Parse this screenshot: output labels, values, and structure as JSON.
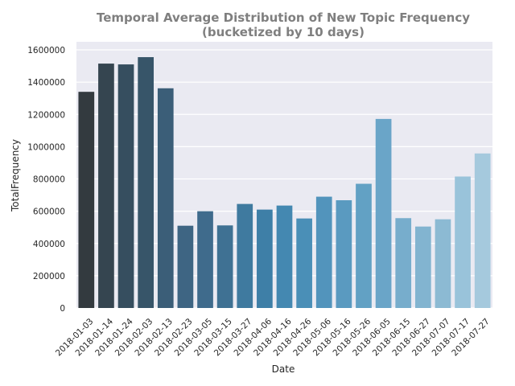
{
  "chart_data": {
    "type": "bar",
    "title": "Temporal Average Distribution of New Topic Frequency",
    "subtitle": "(bucketized by 10 days)",
    "xlabel": "Date",
    "ylabel": "TotalFrequency",
    "ylim": [
      0,
      1650000
    ],
    "yticks": [
      0,
      200000,
      400000,
      600000,
      800000,
      1000000,
      1200000,
      1400000,
      1600000
    ],
    "ytick_labels": [
      "0",
      "200000",
      "400000",
      "600000",
      "800000",
      "1000000",
      "1200000",
      "1400000",
      "1600000"
    ],
    "grid": true,
    "categories": [
      "2018-01-03",
      "2018-01-14",
      "2018-01-24",
      "2018-02-03",
      "2018-02-13",
      "2018-02-23",
      "2018-03-05",
      "2018-03-15",
      "2018-03-27",
      "2018-04-06",
      "2018-04-16",
      "2018-04-26",
      "2018-05-06",
      "2018-05-16",
      "2018-05-26",
      "2018-06-05",
      "2018-06-15",
      "2018-06-27",
      "2018-07-07",
      "2018-07-17",
      "2018-07-27"
    ],
    "values": [
      1340000,
      1515000,
      1510000,
      1555000,
      1362000,
      510000,
      600000,
      512000,
      645000,
      610000,
      635000,
      555000,
      690000,
      668000,
      770000,
      1172000,
      557000,
      505000,
      550000,
      815000,
      958000
    ],
    "colors": [
      "#333a3f",
      "#354550",
      "#364e5f",
      "#375569",
      "#3b5e78",
      "#3e6583",
      "#3f6b8c",
      "#3f7193",
      "#3f7a9f",
      "#3e7fa7",
      "#4488b1",
      "#4a8fb7",
      "#5294bc",
      "#5a9ac0",
      "#62a1c4",
      "#6aa5c8",
      "#77adcc",
      "#82b4d0",
      "#8cbad3",
      "#99c3da",
      "#a5c9dd"
    ],
    "background_color": "#eaeaf2",
    "grid_color": "#ffffff"
  }
}
